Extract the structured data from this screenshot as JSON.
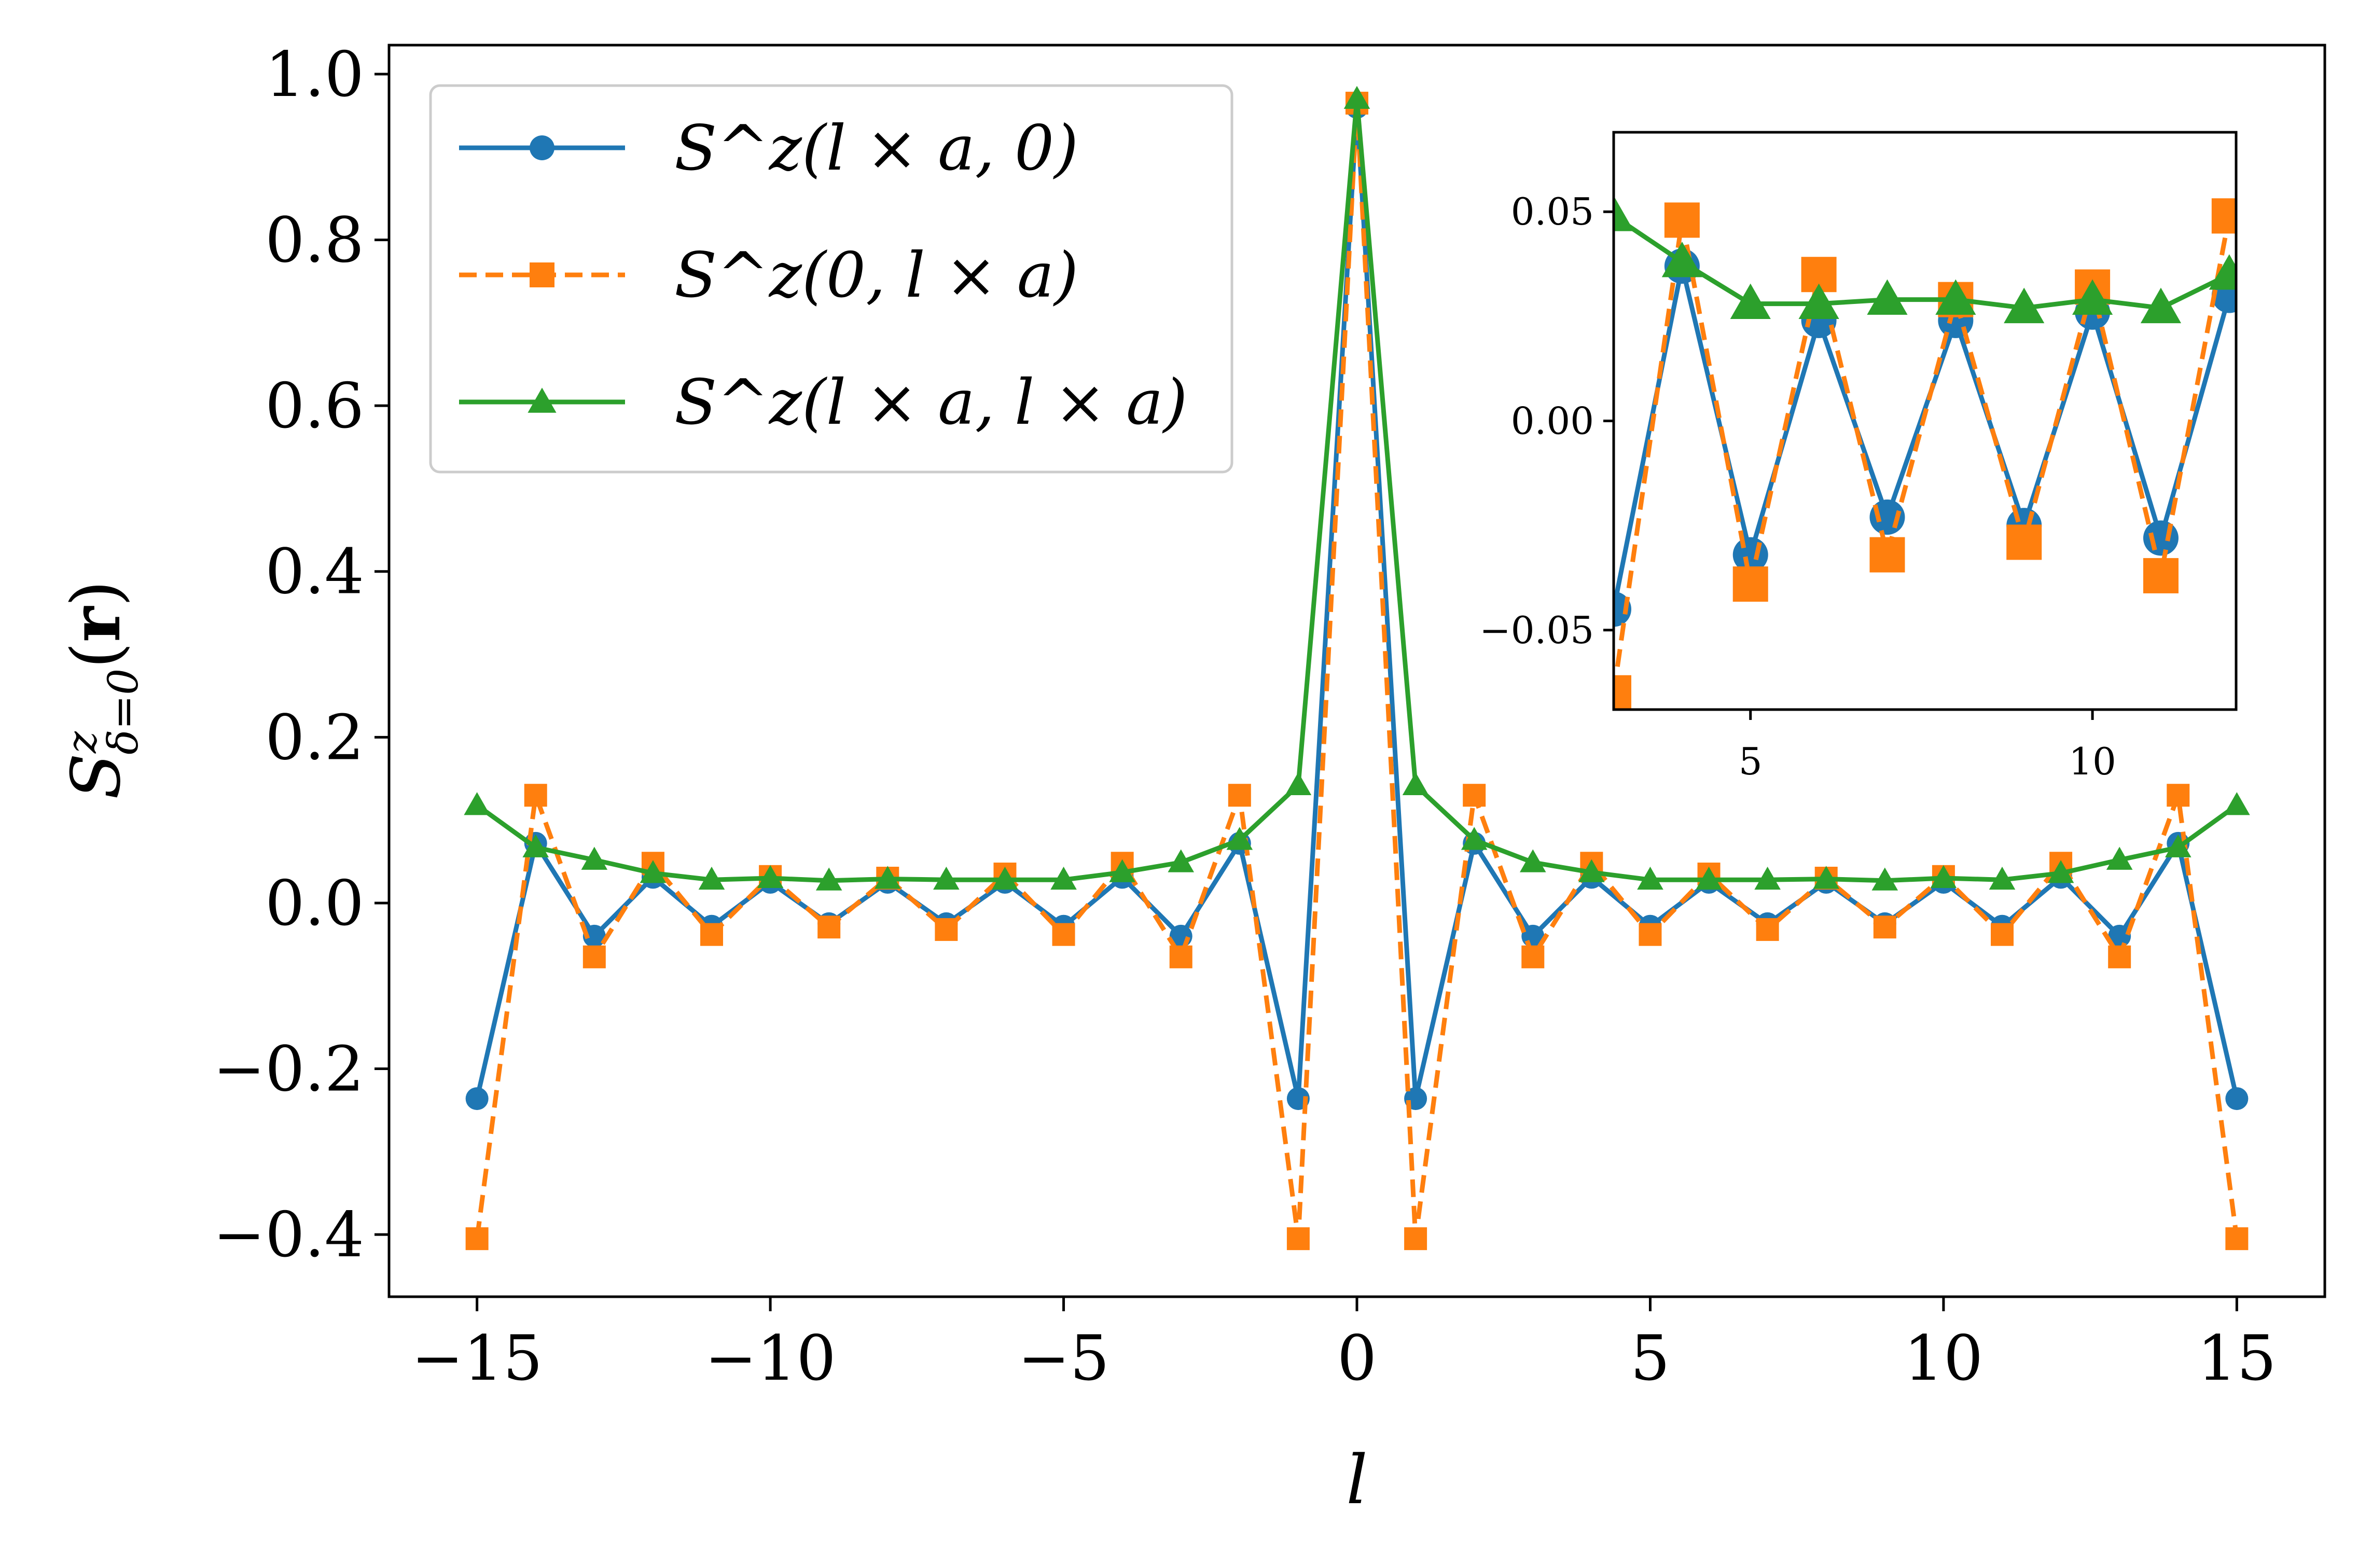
{
  "chart_data": [
    {
      "type": "line",
      "title": "",
      "xlabel": "l",
      "ylabel": "S^z_{δ=0}(r)",
      "xlim": [
        -16.5,
        16.5
      ],
      "ylim": [
        -0.475,
        1.035
      ],
      "xticks": [
        -15,
        -10,
        -5,
        0,
        5,
        10,
        15
      ],
      "xtick_labels": [
        "−15",
        "−10",
        "−5",
        "0",
        "5",
        "10",
        "15"
      ],
      "yticks": [
        -0.4,
        -0.2,
        0.0,
        0.2,
        0.4,
        0.6,
        0.8,
        1.0
      ],
      "ytick_labels": [
        "−0.4",
        "−0.2",
        "0.0",
        "0.2",
        "0.4",
        "0.6",
        "0.8",
        "1.0"
      ],
      "grid": false,
      "legend_position": "top-left",
      "x": [
        -15,
        -14,
        -13,
        -12,
        -11,
        -10,
        -9,
        -8,
        -7,
        -6,
        -5,
        -4,
        -3,
        -2,
        -1,
        0,
        1,
        2,
        3,
        4,
        5,
        6,
        7,
        8,
        9,
        10,
        11,
        12,
        13,
        14,
        15
      ],
      "series": [
        {
          "name": "S^z(l × a, 0)",
          "color": "#1f77b4",
          "line_style": "solid",
          "marker": "circle",
          "values": [
            -0.236,
            0.072,
            -0.04,
            0.031,
            -0.028,
            0.025,
            -0.025,
            0.025,
            -0.025,
            0.025,
            -0.028,
            0.031,
            -0.04,
            0.072,
            -0.236,
            0.96,
            -0.236,
            0.072,
            -0.04,
            0.031,
            -0.028,
            0.025,
            -0.025,
            0.025,
            -0.025,
            0.025,
            -0.028,
            0.031,
            -0.04,
            0.072,
            -0.236
          ]
        },
        {
          "name": "S^z(0, l × a)",
          "color": "#ff7f0e",
          "line_style": "dashed",
          "marker": "square",
          "values": [
            -0.405,
            0.13,
            -0.065,
            0.048,
            -0.038,
            0.032,
            -0.029,
            0.03,
            -0.032,
            0.035,
            -0.038,
            0.048,
            -0.065,
            0.13,
            -0.405,
            0.965,
            -0.405,
            0.13,
            -0.065,
            0.048,
            -0.038,
            0.035,
            -0.032,
            0.03,
            -0.029,
            0.032,
            -0.038,
            0.048,
            -0.065,
            0.13,
            -0.405
          ]
        },
        {
          "name": "S^z(l × a, l × a)",
          "color": "#2ca02c",
          "line_style": "solid",
          "marker": "triangle",
          "values": [
            0.118,
            0.067,
            0.052,
            0.036,
            0.028,
            0.03,
            0.027,
            0.029,
            0.028,
            0.028,
            0.028,
            0.037,
            0.049,
            0.076,
            0.142,
            0.97,
            0.142,
            0.076,
            0.049,
            0.037,
            0.028,
            0.028,
            0.028,
            0.029,
            0.027,
            0.03,
            0.028,
            0.036,
            0.052,
            0.067,
            0.118
          ]
        }
      ]
    },
    {
      "type": "line",
      "title": "",
      "xlabel": "",
      "ylabel": "",
      "xlim": [
        3,
        12.1
      ],
      "ylim": [
        -0.069,
        0.069
      ],
      "xticks": [
        5,
        10
      ],
      "xtick_labels": [
        "5",
        "10"
      ],
      "yticks": [
        -0.05,
        0.0,
        0.05
      ],
      "ytick_labels": [
        "−0.05",
        "0.00",
        "0.05"
      ],
      "grid": false,
      "x": [
        3,
        4,
        5,
        6,
        7,
        8,
        9,
        10,
        11,
        12
      ],
      "series": [
        {
          "color": "#1f77b4",
          "line_style": "solid",
          "marker": "circle",
          "values": [
            -0.045,
            0.037,
            -0.032,
            0.024,
            -0.023,
            0.024,
            -0.025,
            0.026,
            -0.028,
            0.03
          ]
        },
        {
          "color": "#ff7f0e",
          "line_style": "dashed",
          "marker": "square",
          "values": [
            -0.065,
            0.048,
            -0.039,
            0.035,
            -0.032,
            0.029,
            -0.029,
            0.032,
            -0.037,
            0.049
          ]
        },
        {
          "color": "#2ca02c",
          "line_style": "solid",
          "marker": "triangle",
          "values": [
            0.049,
            0.038,
            0.028,
            0.028,
            0.029,
            0.029,
            0.027,
            0.029,
            0.027,
            0.035
          ]
        }
      ]
    }
  ]
}
